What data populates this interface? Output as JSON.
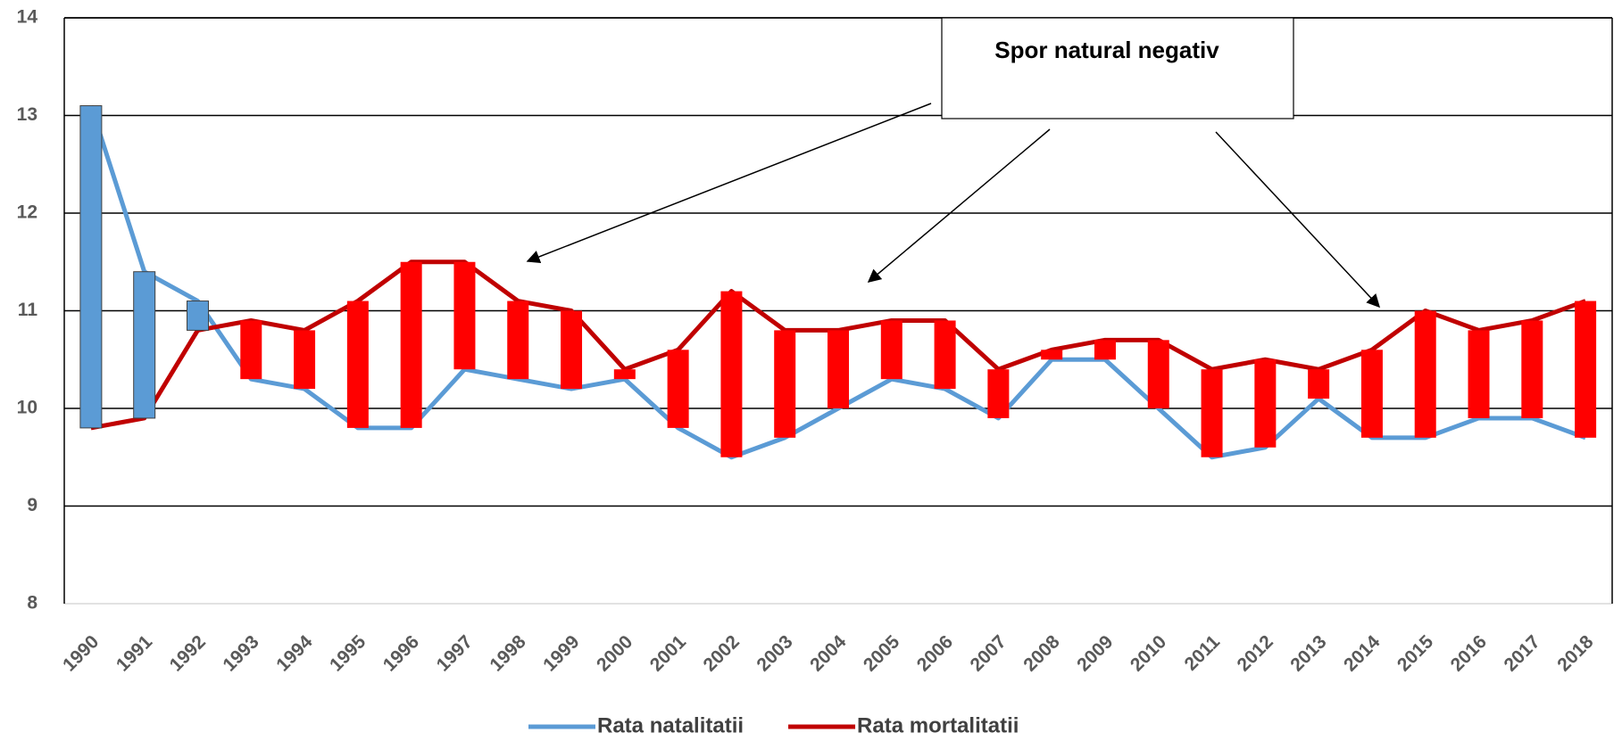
{
  "chart_data": {
    "type": "line",
    "annotation": "Spor natural negativ",
    "categories": [
      "1990",
      "1991",
      "1992",
      "1993",
      "1994",
      "1995",
      "1996",
      "1997",
      "1998",
      "1999",
      "2000",
      "2001",
      "2002",
      "2003",
      "2004",
      "2005",
      "2006",
      "2007",
      "2008",
      "2009",
      "2010",
      "2011",
      "2012",
      "2013",
      "2014",
      "2015",
      "2016",
      "2017",
      "2018"
    ],
    "series": [
      {
        "name": "Rata natalitatii",
        "color": "#5b9bd5",
        "values": [
          13.1,
          11.4,
          11.1,
          10.3,
          10.2,
          9.8,
          9.8,
          10.4,
          10.3,
          10.2,
          10.3,
          9.8,
          9.5,
          9.7,
          10.0,
          10.3,
          10.2,
          9.9,
          10.5,
          10.5,
          10.0,
          9.5,
          9.6,
          10.1,
          9.7,
          9.7,
          9.9,
          9.9,
          9.7
        ]
      },
      {
        "name": "Rata mortalitatii",
        "color": "#c00000",
        "values": [
          9.8,
          9.9,
          10.8,
          10.9,
          10.8,
          11.1,
          11.5,
          11.5,
          11.1,
          11.0,
          10.4,
          10.6,
          11.2,
          10.8,
          10.8,
          10.9,
          10.9,
          10.4,
          10.6,
          10.7,
          10.7,
          10.4,
          10.5,
          10.4,
          10.6,
          11.0,
          10.8,
          10.9,
          11.1
        ]
      }
    ],
    "up_bar_color": "#5b9bd5",
    "down_bar_color": "#ff0000",
    "ylim": [
      8,
      14
    ],
    "yticks": [
      8,
      9,
      10,
      11,
      12,
      13,
      14
    ],
    "grid": true
  }
}
